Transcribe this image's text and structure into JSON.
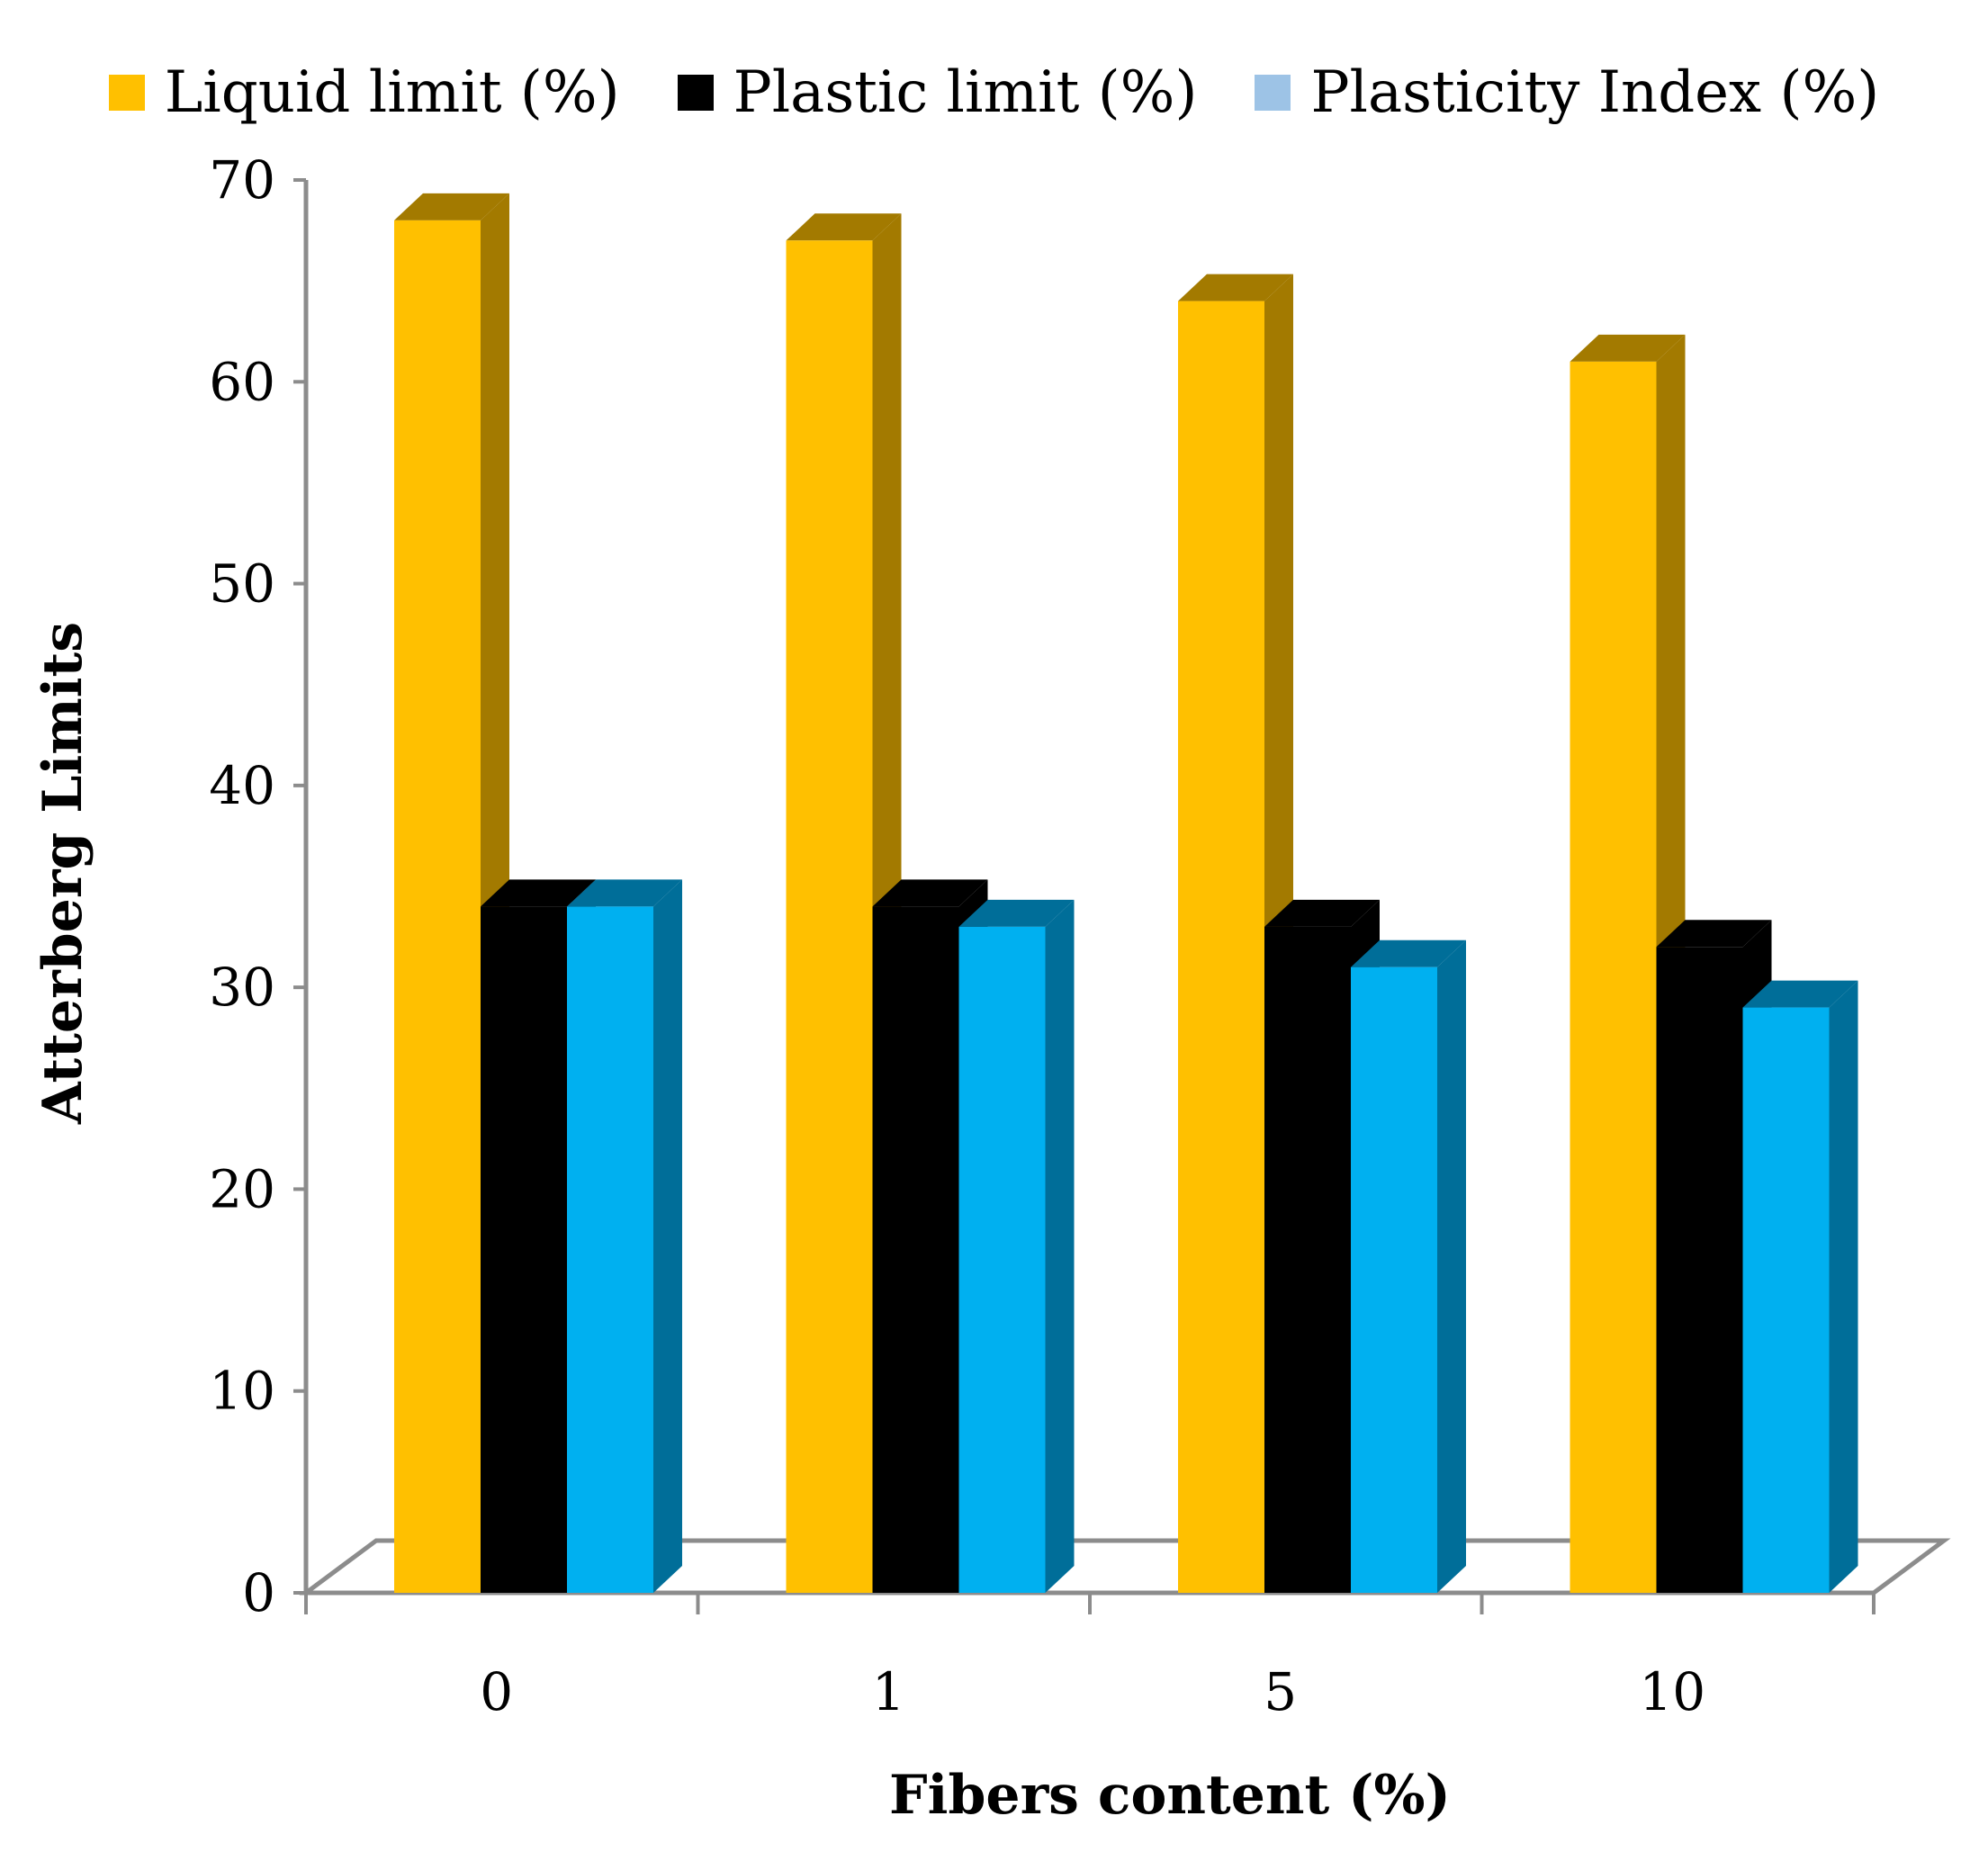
{
  "chart_data": {
    "type": "bar",
    "style": "3d-clustered-column",
    "categories": [
      "0",
      "1",
      "5",
      "10"
    ],
    "series": [
      {
        "name": "Liquid limit (%)",
        "values": [
          68,
          67,
          64,
          61
        ],
        "color": "#FFC000",
        "side_color": "#A37A00",
        "legend_color": "#FFC000"
      },
      {
        "name": "Plastic limit (%)",
        "values": [
          34,
          34,
          33,
          32
        ],
        "color": "#000000",
        "side_color": "#000000",
        "legend_color": "#000000"
      },
      {
        "name": "Plasticity Index (%)",
        "values": [
          34,
          33,
          31,
          29
        ],
        "color": "#00B0F0",
        "side_color": "#006E99",
        "legend_color": "#9DC3E6"
      }
    ],
    "y_ticks": [
      "0",
      "10",
      "20",
      "30",
      "40",
      "50",
      "60",
      "70"
    ],
    "ylim": [
      0,
      70
    ],
    "xlabel": "Fibers content (%)",
    "ylabel": "Atterberg Limits",
    "legend_position": "top",
    "grid": false
  }
}
